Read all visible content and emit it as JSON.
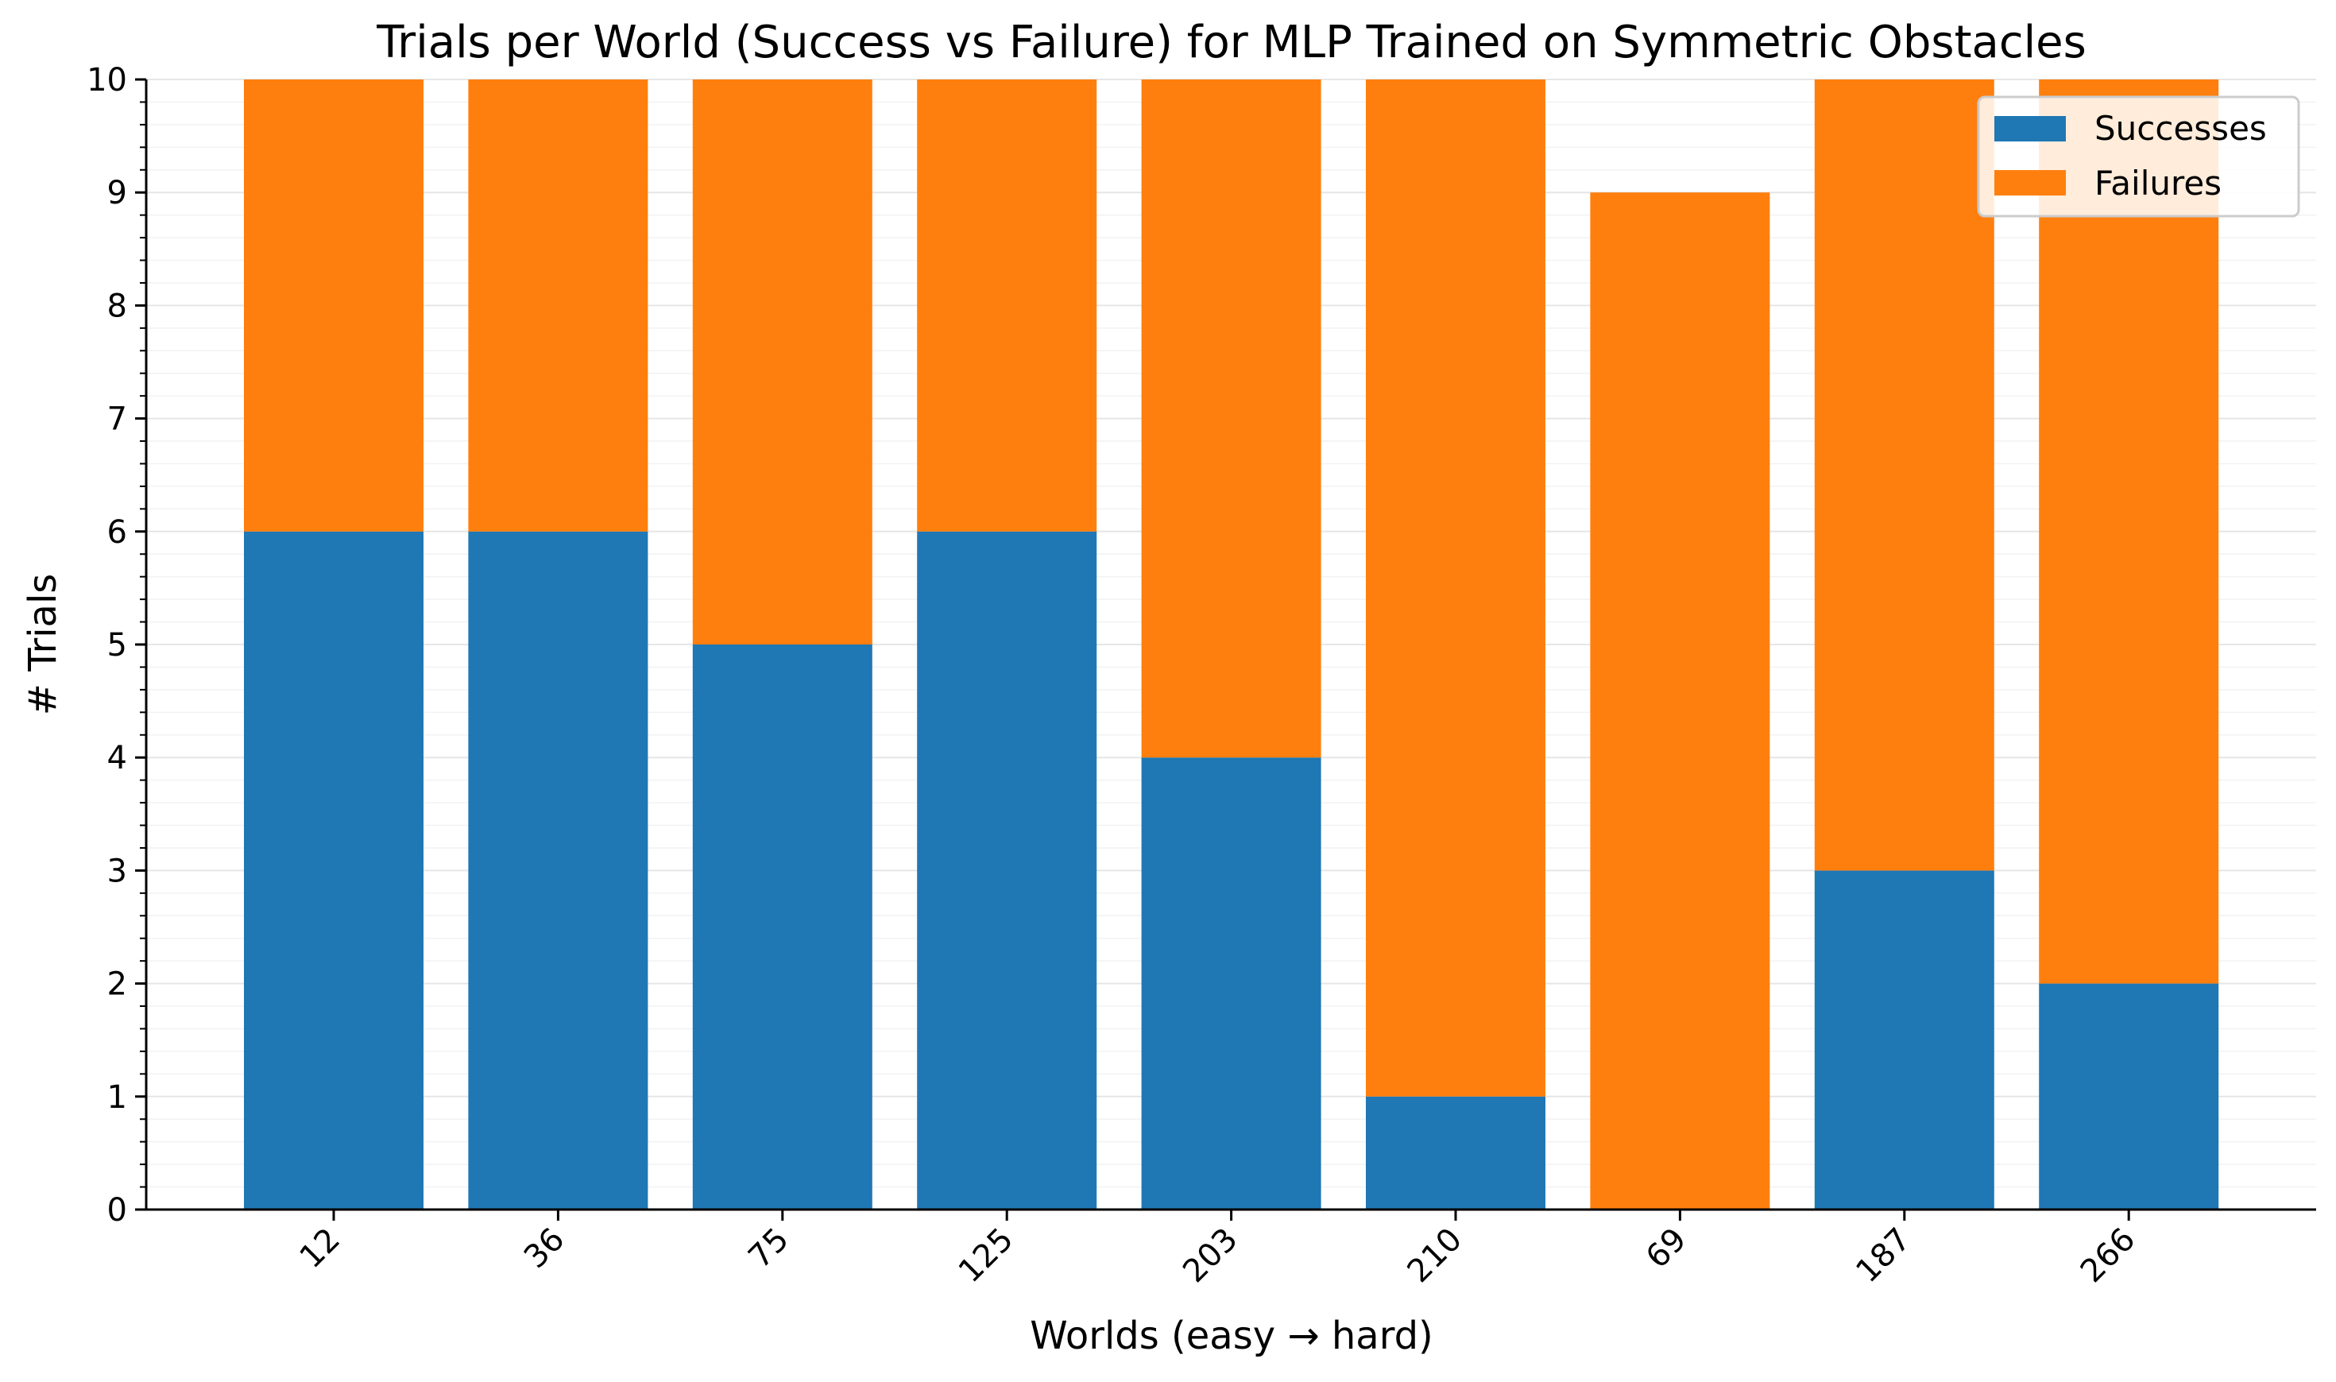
{
  "chart_data": {
    "type": "bar",
    "stacked": true,
    "title": "Trials per World (Success vs Failure) for MLP Trained on Symmetric Obstacles",
    "xlabel": "Worlds (easy → hard)",
    "ylabel": "# Trials",
    "categories": [
      "12",
      "36",
      "75",
      "125",
      "203",
      "210",
      "69",
      "187",
      "266"
    ],
    "series": [
      {
        "name": "Successes",
        "color": "#1f77b4",
        "values": [
          6,
          6,
          5,
          6,
          4,
          1,
          0,
          3,
          2
        ]
      },
      {
        "name": "Failures",
        "color": "#ff7f0e",
        "values": [
          4,
          4,
          5,
          4,
          6,
          9,
          9,
          7,
          8
        ]
      }
    ],
    "ylim": [
      0,
      10
    ],
    "yticks": [
      0,
      1,
      2,
      3,
      4,
      5,
      6,
      7,
      8,
      9,
      10
    ],
    "grid": true,
    "legend_position": "top-right",
    "xtick_rotation": -45
  }
}
